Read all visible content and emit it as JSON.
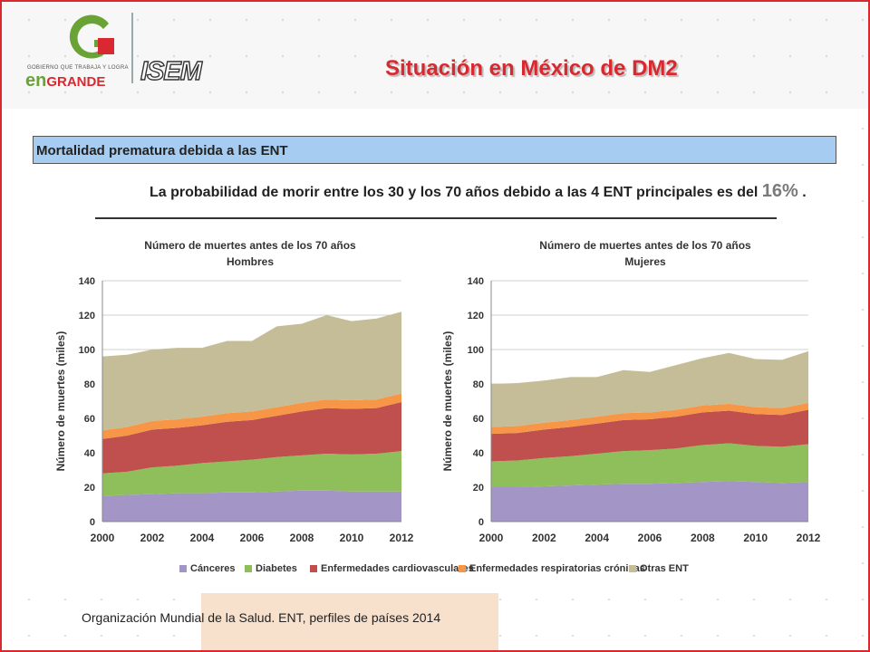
{
  "header": {
    "title": "Situación en México de DM2",
    "logo_tagline": "GOBIERNO QUE TRABAJA Y LOGRA",
    "logo_en": "en",
    "logo_grande": "GRANDE",
    "logo_isem": "ISEM"
  },
  "banner": "Mortalidad prematura debida a las ENT",
  "probability": {
    "text": "La probabilidad de morir entre los 30 y los 70 años debido a las 4 ENT principales es del",
    "value": "16%",
    "suffix": "."
  },
  "legend": {
    "items": [
      {
        "name": "Cánceres",
        "color": "#a395c6"
      },
      {
        "name": "Diabetes",
        "color": "#8fbf5a"
      },
      {
        "name": "Enfermedades cardiovasculares",
        "color": "#c0504d"
      },
      {
        "name": "Enfermedades respiratorias crónicas",
        "color": "#f79646"
      },
      {
        "name": "Otras ENT",
        "color": "#c4bd97"
      }
    ]
  },
  "source": "Organización Mundial de la Salud. ENT, perfiles de países 2014",
  "chart_data": [
    {
      "type": "area",
      "stacked": true,
      "title": "Número de muertes antes de los 70 años",
      "subtitle": "Hombres",
      "ylabel": "Número de muertes (miles)",
      "ylim": [
        0,
        140
      ],
      "yticks": [
        "0",
        "20",
        "40",
        "60",
        "80",
        "100",
        "120",
        "140"
      ],
      "x": [
        2000,
        2001,
        2002,
        2003,
        2004,
        2005,
        2006,
        2007,
        2008,
        2009,
        2010,
        2011,
        2012
      ],
      "xticks": [
        "2000",
        "2002",
        "2004",
        "2006",
        "2008",
        "2010",
        "2012"
      ],
      "series": [
        {
          "name": "Cánceres",
          "values": [
            15,
            15.5,
            16,
            16.5,
            16.5,
            17,
            17,
            17.5,
            18,
            18,
            17.5,
            17.5,
            17.5
          ]
        },
        {
          "name": "Diabetes",
          "values": [
            13,
            13.5,
            15.5,
            16,
            17.5,
            18,
            19,
            20,
            20.5,
            21.5,
            21.5,
            22,
            23.5
          ]
        },
        {
          "name": "Enfermedades cardiovasculares",
          "values": [
            20,
            21,
            22,
            22,
            22,
            23,
            23,
            24,
            25.5,
            26.5,
            26.5,
            26.5,
            28.5
          ]
        },
        {
          "name": "Enfermedades respiratorias crónicas",
          "values": [
            5,
            5,
            5,
            5,
            5,
            5,
            5,
            5,
            5,
            5,
            5,
            5,
            5
          ]
        },
        {
          "name": "Otras ENT",
          "values": [
            43,
            42,
            41.5,
            41.5,
            40,
            42,
            41,
            47,
            46,
            49,
            46,
            47,
            47.5
          ]
        }
      ]
    },
    {
      "type": "area",
      "stacked": true,
      "title": "Número de muertes antes de los 70 años",
      "subtitle": "Mujeres",
      "ylabel": "Número de muertes (miles)",
      "ylim": [
        0,
        140
      ],
      "yticks": [
        "0",
        "20",
        "40",
        "60",
        "80",
        "100",
        "120",
        "140"
      ],
      "x": [
        2000,
        2001,
        2002,
        2003,
        2004,
        2005,
        2006,
        2007,
        2008,
        2009,
        2010,
        2011,
        2012
      ],
      "xticks": [
        "2000",
        "2002",
        "2004",
        "2006",
        "2008",
        "2010",
        "2012"
      ],
      "series": [
        {
          "name": "Cánceres",
          "values": [
            20,
            20,
            20.5,
            21,
            21.5,
            22,
            22,
            22.5,
            23,
            23.5,
            23,
            22.5,
            23
          ]
        },
        {
          "name": "Diabetes",
          "values": [
            15,
            15.5,
            16.5,
            17,
            18,
            19,
            19.5,
            20,
            21.5,
            22,
            21,
            21,
            22
          ]
        },
        {
          "name": "Enfermedades cardiovasculares",
          "values": [
            16,
            16,
            16.5,
            17,
            17.5,
            18,
            18,
            18.5,
            19,
            19,
            18.5,
            18.5,
            20
          ]
        },
        {
          "name": "Enfermedades respiratorias crónicas",
          "values": [
            4,
            4,
            4,
            4,
            4,
            4,
            4,
            4,
            4,
            4,
            4,
            4,
            4
          ]
        },
        {
          "name": "Otras ENT",
          "values": [
            25,
            25,
            24.5,
            25,
            23,
            25,
            23.5,
            26,
            27.5,
            29.5,
            28,
            28,
            30
          ]
        }
      ]
    }
  ]
}
